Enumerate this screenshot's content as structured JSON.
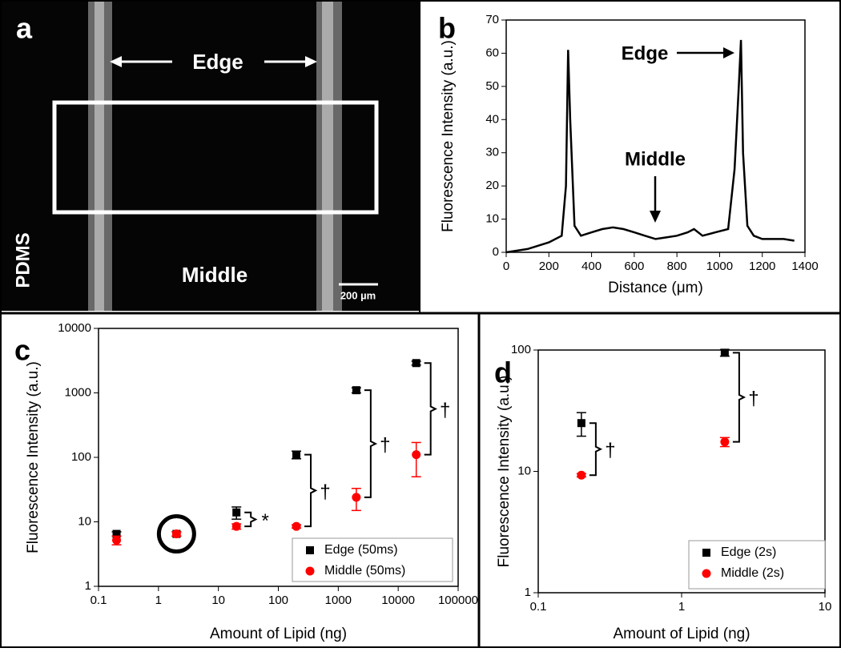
{
  "image_panel": {
    "label": "a",
    "edge": "Edge",
    "middle": "Middle",
    "material": "PDMS",
    "scale_bar": "200 µm"
  },
  "chart_data": [
    {
      "type": "line",
      "panel_label": "b",
      "xlabel": "Distance (μm)",
      "ylabel": "Fluorescence Intensity (a.u.)",
      "xlim": [
        0,
        1400
      ],
      "ylim": [
        0,
        70
      ],
      "xticks": [
        0,
        200,
        400,
        600,
        800,
        1000,
        1200,
        1400
      ],
      "yticks": [
        0,
        10,
        20,
        30,
        40,
        50,
        60,
        70
      ],
      "x": [
        0,
        100,
        200,
        260,
        280,
        290,
        300,
        320,
        350,
        400,
        450,
        500,
        550,
        600,
        650,
        700,
        750,
        800,
        850,
        880,
        920,
        980,
        1040,
        1070,
        1090,
        1100,
        1110,
        1130,
        1160,
        1200,
        1300,
        1350
      ],
      "series": [
        {
          "name": "profile",
          "color": "#000000",
          "values": [
            0,
            1,
            3,
            5,
            20,
            61,
            40,
            8,
            5,
            6,
            7,
            7.5,
            7,
            6,
            5,
            4,
            4.5,
            5,
            6,
            7,
            5,
            6,
            7,
            25,
            50,
            64,
            30,
            8,
            5,
            4,
            4,
            3.5
          ]
        }
      ],
      "annotations": [
        "Edge",
        "Middle"
      ]
    },
    {
      "type": "scatter",
      "panel_label": "c",
      "xlabel": "Amount of Lipid (ng)",
      "ylabel": "Fluorescence Intensity (a.u.)",
      "xscale": "log",
      "yscale": "log",
      "xlim": [
        0.1,
        100000
      ],
      "ylim": [
        1,
        10000
      ],
      "xticks": [
        0.1,
        1,
        10,
        100,
        1000,
        10000,
        100000
      ],
      "yticks": [
        1,
        10,
        100,
        1000,
        10000
      ],
      "legend": "lower right",
      "series": [
        {
          "name": "Edge (50ms)",
          "color": "#000000",
          "marker": "square",
          "x": [
            0.2,
            2,
            20,
            200,
            2000,
            20000
          ],
          "values": [
            6.5,
            6.5,
            14,
            110,
            1100,
            2900
          ],
          "errors": [
            0.5,
            0.5,
            3,
            15,
            100,
            200
          ]
        },
        {
          "name": "Middle (50ms)",
          "color": "#ff0000",
          "marker": "circle",
          "x": [
            0.2,
            2,
            20,
            200,
            2000,
            20000
          ],
          "values": [
            5.2,
            6.5,
            8.5,
            8.5,
            24,
            110
          ],
          "errors": [
            0.8,
            0.5,
            0.8,
            0.5,
            9,
            60
          ]
        }
      ],
      "annotations": [
        "*",
        "†",
        "†",
        "†"
      ]
    },
    {
      "type": "scatter",
      "panel_label": "d",
      "xlabel": "Amount of Lipid (ng)",
      "ylabel": "Fluorescence Intensity (a.u.)",
      "xscale": "log",
      "yscale": "log",
      "xlim": [
        0.1,
        10
      ],
      "ylim": [
        1,
        100
      ],
      "xticks": [
        0.1,
        1,
        10
      ],
      "yticks": [
        1,
        10,
        100
      ],
      "legend": "lower right",
      "series": [
        {
          "name": "Edge (2s)",
          "color": "#000000",
          "marker": "square",
          "x": [
            0.2,
            2
          ],
          "values": [
            25,
            95
          ],
          "errors": [
            5.5,
            6
          ]
        },
        {
          "name": "Middle (2s)",
          "color": "#ff0000",
          "marker": "circle",
          "x": [
            0.2,
            2
          ],
          "values": [
            9.3,
            17.5
          ],
          "errors": [
            0.3,
            1.5
          ]
        }
      ],
      "annotations": [
        "†",
        "†"
      ]
    }
  ]
}
